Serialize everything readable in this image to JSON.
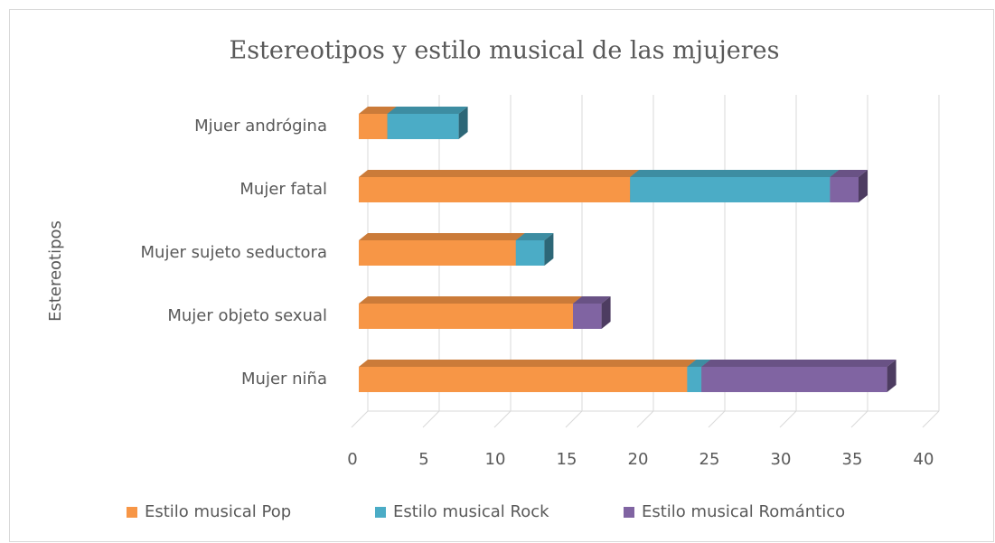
{
  "chart_data": {
    "type": "bar3d_stacked_horizontal",
    "title": "Estereotipos y estilo musical de las mjujeres",
    "y_label": "Estereotipos",
    "categories": [
      "Mjuer andrógina",
      "Mujer fatal",
      "Mujer sujeto seductora",
      "Mujer objeto sexual",
      "Mujer niña"
    ],
    "series": [
      {
        "name": "Estilo musical Pop",
        "color": "#f79646",
        "values": [
          2,
          19,
          11,
          15,
          23
        ]
      },
      {
        "name": "Estilo musical Rock",
        "color": "#4bacc6",
        "values": [
          5,
          14,
          2,
          0,
          1
        ]
      },
      {
        "name": "Estilo musical Romántico",
        "color": "#8064a2",
        "values": [
          0,
          2,
          0,
          2,
          13
        ]
      }
    ],
    "xlim": [
      0,
      40
    ],
    "xticks": [
      0,
      5,
      10,
      15,
      20,
      25,
      30,
      35,
      40
    ],
    "grid": true,
    "legend": "bottom"
  }
}
